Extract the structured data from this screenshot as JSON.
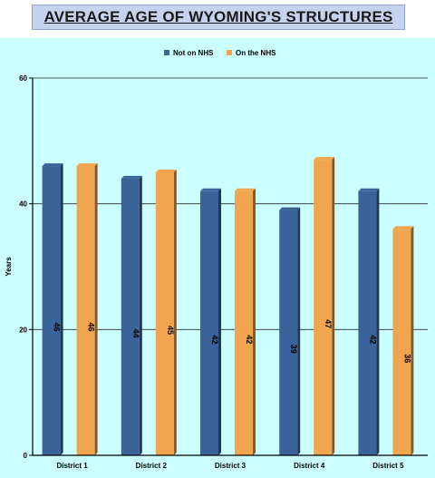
{
  "chart_data": {
    "type": "bar",
    "title": "AVERAGE AGE OF WYOMING'S STRUCTURES",
    "ylabel": "Years",
    "xlabel": "",
    "categories": [
      "District 1",
      "District 2",
      "District 3",
      "District 4",
      "District 5"
    ],
    "series": [
      {
        "name": "Not on NHS",
        "values": [
          46,
          44,
          42,
          39,
          42
        ],
        "color": "#3a6399"
      },
      {
        "name": "On the NHS",
        "values": [
          46,
          45,
          42,
          47,
          36
        ],
        "color": "#f0a54e"
      }
    ],
    "ylim": [
      0,
      60
    ],
    "yticks": [
      0,
      20,
      40,
      60
    ],
    "grid": true,
    "legend": "top-center",
    "background": "#ccffff"
  }
}
